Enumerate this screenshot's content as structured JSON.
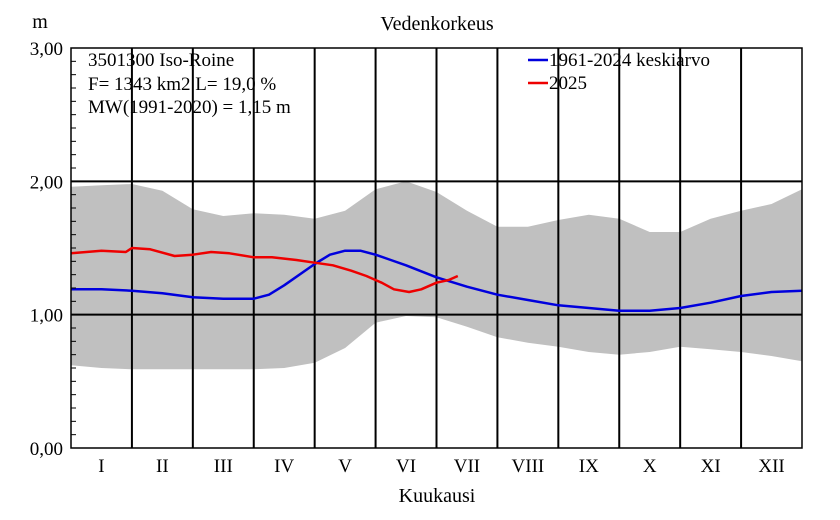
{
  "chart_data": {
    "type": "line",
    "title": "Vedenkorkeus",
    "ylabel": "m",
    "xlabel": "Kuukausi",
    "ylim": [
      0,
      3
    ],
    "xlim": [
      0,
      12
    ],
    "y_ticks": [
      "0,00",
      "1,00",
      "2,00",
      "3,00"
    ],
    "categories": [
      "I",
      "II",
      "III",
      "IV",
      "V",
      "VI",
      "VII",
      "VIII",
      "IX",
      "X",
      "XI",
      "XII"
    ],
    "info_lines": [
      "3501300 Iso-Roine",
      "F=   1343 km2 L=  19,0 %",
      "MW(1991-2020) = 1,15 m"
    ],
    "legend_position": "top-right",
    "colors": {
      "band": "#c0c0c0",
      "mean": "#0000dd",
      "current": "#ee0000"
    },
    "band": {
      "x": [
        0,
        0.5,
        1,
        1.5,
        2,
        2.5,
        3,
        3.5,
        4,
        4.5,
        5,
        5.5,
        6,
        6.5,
        7,
        7.5,
        8,
        8.5,
        9,
        9.5,
        10,
        10.5,
        11,
        11.5,
        12
      ],
      "upper": [
        1.96,
        1.97,
        1.98,
        1.93,
        1.79,
        1.74,
        1.76,
        1.75,
        1.72,
        1.78,
        1.94,
        2.0,
        1.92,
        1.78,
        1.66,
        1.66,
        1.71,
        1.75,
        1.72,
        1.62,
        1.62,
        1.72,
        1.78,
        1.83,
        1.94
      ],
      "lower": [
        0.62,
        0.6,
        0.59,
        0.59,
        0.59,
        0.59,
        0.59,
        0.6,
        0.64,
        0.75,
        0.94,
        0.99,
        0.98,
        0.91,
        0.83,
        0.79,
        0.76,
        0.72,
        0.7,
        0.72,
        0.76,
        0.74,
        0.72,
        0.69,
        0.65
      ]
    },
    "series": [
      {
        "name": "1961-2024 keskiarvo",
        "x": [
          0,
          0.5,
          1,
          1.5,
          2,
          2.5,
          3,
          3.25,
          3.5,
          4,
          4.25,
          4.5,
          4.75,
          5,
          5.25,
          5.5,
          6,
          6.5,
          7,
          7.5,
          8,
          8.5,
          9,
          9.5,
          10,
          10.5,
          11,
          11.5,
          12
        ],
        "y": [
          1.19,
          1.19,
          1.18,
          1.16,
          1.13,
          1.12,
          1.12,
          1.15,
          1.22,
          1.38,
          1.45,
          1.48,
          1.48,
          1.45,
          1.41,
          1.37,
          1.28,
          1.21,
          1.15,
          1.11,
          1.07,
          1.05,
          1.03,
          1.03,
          1.05,
          1.09,
          1.14,
          1.17,
          1.18
        ]
      },
      {
        "name": "2025",
        "x": [
          0,
          0.5,
          0.9,
          1.0,
          1.3,
          1.7,
          2.0,
          2.3,
          2.6,
          3.0,
          3.3,
          3.7,
          4.0,
          4.3,
          4.6,
          4.85,
          5.1,
          5.3,
          5.55,
          5.75,
          6.0,
          6.2,
          6.35
        ],
        "y": [
          1.46,
          1.48,
          1.47,
          1.5,
          1.49,
          1.44,
          1.45,
          1.47,
          1.46,
          1.43,
          1.43,
          1.41,
          1.39,
          1.37,
          1.33,
          1.29,
          1.24,
          1.19,
          1.17,
          1.19,
          1.24,
          1.26,
          1.29
        ]
      }
    ]
  }
}
